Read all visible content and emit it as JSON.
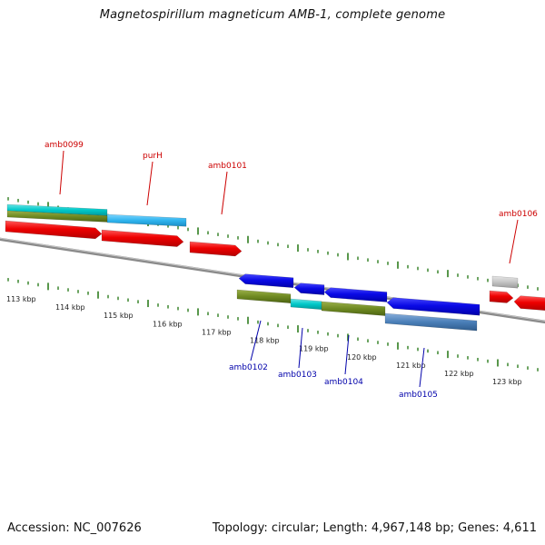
{
  "title": "Magnetospirillum magneticum AMB-1, complete genome",
  "footer": {
    "accession": "Accession: NC_007626",
    "summary": "Topology: circular; Length: 4,967,148 bp; Genes: 4,611"
  },
  "colors": {
    "forward_label": "#cc0000",
    "reverse_label": "#0000aa",
    "tick": "#2e7d1e",
    "backbone": "#8a8a8a"
  },
  "tick_labels": [
    "113 kbp",
    "114 kbp",
    "115 kbp",
    "116 kbp",
    "117 kbp",
    "118 kbp",
    "119 kbp",
    "120 kbp",
    "121 kbp",
    "122 kbp",
    "123 kbp"
  ],
  "forward_gene_labels": [
    "amb0099",
    "purH",
    "amb0101",
    "amb0106"
  ],
  "reverse_gene_labels": [
    "amb0102",
    "amb0103",
    "amb0104",
    "amb0105"
  ]
}
